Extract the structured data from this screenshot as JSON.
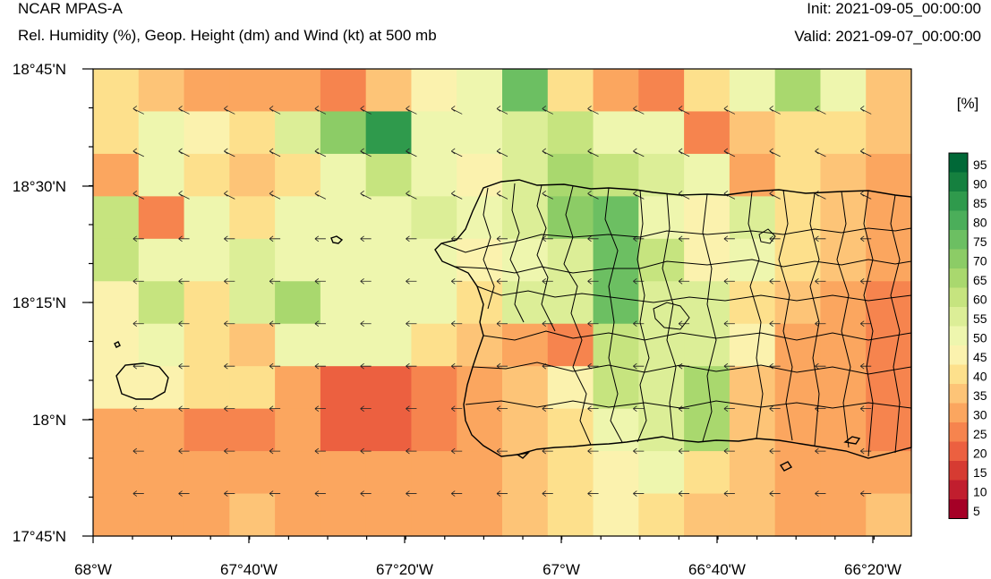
{
  "header": {
    "title": "NCAR MPAS-A",
    "subtitle": "Rel. Humidity (%), Geop. Height (dm) and Wind (kt) at 500 mb",
    "init": "Init: 2021-09-05_00:00:00",
    "valid": "Valid: 2021-09-07_00:00:00"
  },
  "map": {
    "lat_labels": [
      "18°45'N",
      "18°30'N",
      "18°15'N",
      "18°N",
      "17°45'N"
    ],
    "lon_labels": [
      "68°W",
      "67°40'W",
      "67°20'W",
      "67°W",
      "66°40'W",
      "66°20'W"
    ],
    "extent": {
      "lon_min": -68.0,
      "lon_max": -66.25,
      "lat_min": 17.75,
      "lat_max": 18.75
    },
    "grid_rows": [
      [
        40,
        35,
        30,
        30,
        30,
        25,
        35,
        45,
        50,
        75,
        40,
        30,
        25,
        40,
        50,
        65,
        50,
        35
      ],
      [
        40,
        50,
        45,
        40,
        55,
        70,
        85,
        50,
        50,
        55,
        60,
        50,
        50,
        25,
        35,
        40,
        40,
        35
      ],
      [
        30,
        50,
        40,
        35,
        40,
        50,
        60,
        50,
        45,
        55,
        65,
        60,
        55,
        50,
        30,
        40,
        35,
        30
      ],
      [
        60,
        25,
        50,
        40,
        50,
        50,
        50,
        55,
        50,
        55,
        70,
        75,
        50,
        45,
        55,
        40,
        35,
        30
      ],
      [
        60,
        50,
        50,
        55,
        50,
        50,
        50,
        50,
        45,
        50,
        55,
        75,
        60,
        45,
        50,
        40,
        35,
        30
      ],
      [
        45,
        60,
        40,
        55,
        65,
        50,
        50,
        50,
        40,
        55,
        55,
        75,
        55,
        55,
        40,
        35,
        30,
        25
      ],
      [
        45,
        50,
        40,
        35,
        50,
        50,
        50,
        40,
        35,
        30,
        25,
        60,
        55,
        55,
        45,
        30,
        30,
        25
      ],
      [
        45,
        45,
        40,
        40,
        30,
        20,
        20,
        25,
        30,
        35,
        45,
        60,
        55,
        65,
        35,
        30,
        30,
        25
      ],
      [
        30,
        30,
        25,
        25,
        30,
        20,
        20,
        25,
        30,
        35,
        40,
        50,
        55,
        65,
        35,
        30,
        30,
        25
      ],
      [
        30,
        30,
        30,
        30,
        30,
        30,
        30,
        30,
        30,
        35,
        40,
        45,
        50,
        40,
        35,
        30,
        30,
        30
      ],
      [
        30,
        30,
        30,
        35,
        30,
        30,
        30,
        30,
        30,
        35,
        40,
        45,
        40,
        35,
        35,
        30,
        30,
        35
      ]
    ],
    "wind_direction": "easterly"
  },
  "colorbar": {
    "unit": "[%]",
    "labels": [
      "95",
      "90",
      "85",
      "80",
      "75",
      "70",
      "65",
      "60",
      "55",
      "50",
      "45",
      "40",
      "35",
      "30",
      "25",
      "20",
      "15",
      "10",
      "5"
    ],
    "colors": [
      "#006837",
      "#15803f",
      "#2f9a4c",
      "#4bae5a",
      "#6cbf62",
      "#8ccc66",
      "#a9d86e",
      "#c6e47f",
      "#dcee97",
      "#eef6ae",
      "#fbf2ae",
      "#fde08c",
      "#fdc477",
      "#fba65f",
      "#f6844e",
      "#ec6040",
      "#d63b32",
      "#c11e2e",
      "#a50026"
    ]
  }
}
